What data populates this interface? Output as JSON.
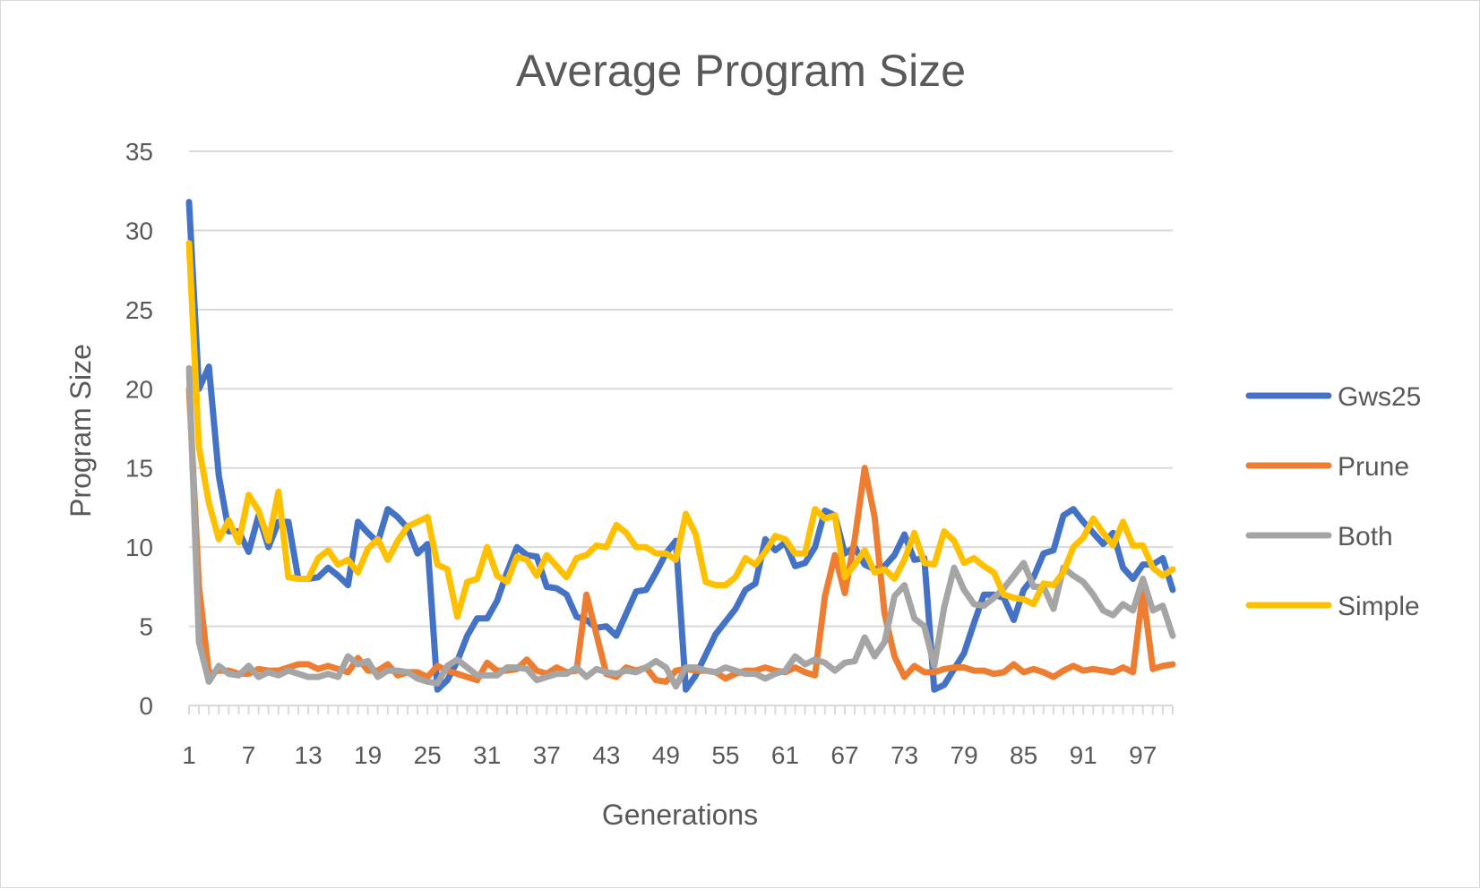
{
  "chart_data": {
    "type": "line",
    "title": "Average Program Size",
    "xlabel": "Generations",
    "ylabel": "Program Size",
    "ylim": [
      0,
      35
    ],
    "yticks": [
      0,
      5,
      10,
      15,
      20,
      25,
      30,
      35
    ],
    "x": [
      1,
      2,
      3,
      4,
      5,
      6,
      7,
      8,
      9,
      10,
      11,
      12,
      13,
      14,
      15,
      16,
      17,
      18,
      19,
      20,
      21,
      22,
      23,
      24,
      25,
      26,
      27,
      28,
      29,
      30,
      31,
      32,
      33,
      34,
      35,
      36,
      37,
      38,
      39,
      40,
      41,
      42,
      43,
      44,
      45,
      46,
      47,
      48,
      49,
      50,
      51,
      52,
      53,
      54,
      55,
      56,
      57,
      58,
      59,
      60,
      61,
      62,
      63,
      64,
      65,
      66,
      67,
      68,
      69,
      70,
      71,
      72,
      73,
      74,
      75,
      76,
      77,
      78,
      79,
      80,
      81,
      82,
      83,
      84,
      85,
      86,
      87,
      88,
      89,
      90,
      91,
      92,
      93,
      94,
      95,
      96,
      97,
      98,
      99,
      100
    ],
    "xticks": [
      1,
      7,
      13,
      19,
      25,
      31,
      37,
      43,
      49,
      55,
      61,
      67,
      73,
      79,
      85,
      91,
      97
    ],
    "grid": true,
    "legend_position": "right",
    "series": [
      {
        "name": "Gws25",
        "color": "#4472C4",
        "values": [
          31.8,
          20,
          21.4,
          14.5,
          11,
          11,
          9.7,
          12,
          10,
          11.6,
          11.6,
          8,
          8,
          8.1,
          8.7,
          8.2,
          7.6,
          11.6,
          10.9,
          10.3,
          12.4,
          11.9,
          11.2,
          9.6,
          10.2,
          1,
          1.6,
          2.8,
          4.4,
          5.5,
          5.5,
          6.6,
          8.4,
          10,
          9.5,
          9.4,
          7.5,
          7.4,
          7,
          5.6,
          5.4,
          4.9,
          5,
          4.4,
          5.8,
          7.2,
          7.3,
          8.4,
          9.6,
          10.4,
          1,
          1.9,
          3.2,
          4.5,
          5.3,
          6.1,
          7.3,
          7.7,
          10.5,
          9.8,
          10.3,
          8.8,
          9,
          10,
          12.3,
          12,
          9.6,
          10,
          8.9,
          8.6,
          8.8,
          9.5,
          10.8,
          9.2,
          9.3,
          1,
          1.3,
          2.3,
          3.3,
          5.2,
          7,
          7,
          6.8,
          5.4,
          7.3,
          8.1,
          9.6,
          9.8,
          12,
          12.4,
          11.6,
          10.9,
          10.2,
          10.9,
          8.7,
          8,
          8.9,
          8.9,
          9.3,
          7.3
        ]
      },
      {
        "name": "Prune",
        "color": "#ED7D31",
        "values": [
          20,
          7.5,
          2,
          2.2,
          2.2,
          2,
          2,
          2.3,
          2.2,
          2.2,
          2.4,
          2.6,
          2.6,
          2.3,
          2.5,
          2.3,
          2.1,
          3,
          2.2,
          2.2,
          2.6,
          1.9,
          2.1,
          2.1,
          1.8,
          2.5,
          2.2,
          2,
          1.8,
          1.6,
          2.7,
          2.2,
          2.2,
          2.3,
          2.9,
          2.2,
          2,
          2.4,
          2.1,
          2.2,
          7,
          4.5,
          2,
          1.8,
          2.4,
          2.2,
          2.4,
          1.6,
          1.5,
          2.2,
          2.3,
          2.2,
          2.2,
          2.1,
          1.7,
          2,
          2.2,
          2.2,
          2.4,
          2.2,
          2.1,
          2.4,
          2.1,
          1.9,
          6.9,
          9.5,
          7.1,
          10.5,
          15,
          11.9,
          5.8,
          3.1,
          1.8,
          2.5,
          2.1,
          2.1,
          2.3,
          2.4,
          2.4,
          2.2,
          2.2,
          2,
          2.1,
          2.6,
          2.1,
          2.3,
          2.1,
          1.8,
          2.2,
          2.5,
          2.2,
          2.3,
          2.2,
          2.1,
          2.4,
          2.1,
          7.2,
          2.3,
          2.5,
          2.6
        ]
      },
      {
        "name": "Both",
        "color": "#A5A5A5",
        "values": [
          21.3,
          4,
          1.5,
          2.5,
          2,
          1.9,
          2.5,
          1.8,
          2.1,
          1.9,
          2.2,
          2,
          1.8,
          1.8,
          2,
          1.8,
          3.1,
          2.6,
          2.8,
          1.8,
          2.2,
          2.2,
          2.1,
          1.7,
          1.5,
          1.4,
          2.5,
          2.9,
          2.4,
          1.9,
          1.9,
          1.9,
          2.4,
          2.4,
          2.3,
          1.6,
          1.8,
          2,
          2,
          2.4,
          1.8,
          2.3,
          2.1,
          2,
          2.2,
          2.1,
          2.4,
          2.8,
          2.4,
          1.2,
          2.4,
          2.4,
          2.2,
          2.1,
          2.4,
          2.2,
          2,
          2,
          1.7,
          2,
          2.2,
          3.1,
          2.6,
          2.9,
          2.7,
          2.2,
          2.7,
          2.8,
          4.3,
          3.1,
          4,
          6.9,
          7.6,
          5.5,
          5,
          2.5,
          6.2,
          8.7,
          7.3,
          6.4,
          6.3,
          6.8,
          7.4,
          8.2,
          9,
          7.5,
          7.5,
          6.1,
          8.7,
          8.2,
          7.8,
          7,
          6,
          5.7,
          6.4,
          6,
          8,
          6,
          6.3,
          4.4
        ]
      },
      {
        "name": "Simple",
        "color": "#FFC000",
        "values": [
          29.2,
          16.3,
          12.8,
          10.5,
          11.7,
          10.3,
          13.3,
          12.3,
          10.4,
          13.5,
          8.1,
          8,
          8,
          9.3,
          9.8,
          8.9,
          9.2,
          8.4,
          9.9,
          10.5,
          9.2,
          10.4,
          11.3,
          11.6,
          11.9,
          8.9,
          8.6,
          5.6,
          7.8,
          8,
          10,
          8.2,
          7.8,
          9.4,
          9.2,
          8.2,
          9.5,
          8.8,
          8.1,
          9.3,
          9.5,
          10.1,
          10,
          11.4,
          10.9,
          10,
          10,
          9.6,
          9.6,
          9.2,
          12.1,
          10.8,
          7.8,
          7.6,
          7.6,
          8.1,
          9.3,
          8.9,
          9.7,
          10.7,
          10.5,
          9.6,
          9.6,
          12.4,
          11.8,
          12,
          8.1,
          8.9,
          9.8,
          8.4,
          8.6,
          8,
          9.2,
          10.9,
          9,
          8.9,
          11,
          10.4,
          9,
          9.3,
          8.8,
          8.4,
          7,
          6.8,
          6.7,
          6.4,
          7.7,
          7.6,
          8.4,
          10,
          10.6,
          11.8,
          10.9,
          10.1,
          11.6,
          10.1,
          10.1,
          8.7,
          8.2,
          8.6
        ]
      }
    ]
  }
}
